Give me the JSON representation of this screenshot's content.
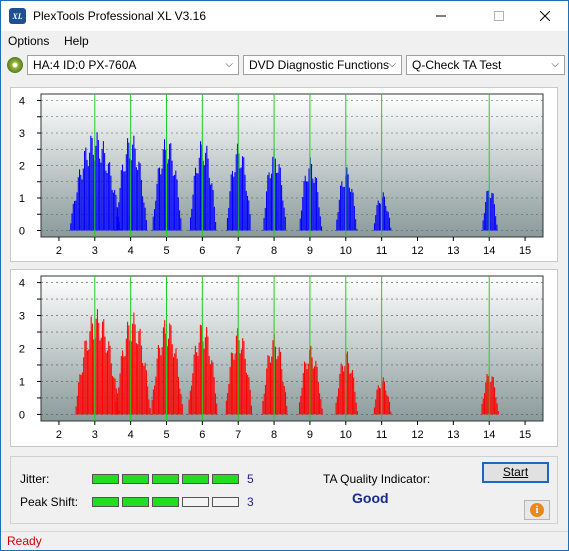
{
  "window": {
    "title": "PlexTools Professional XL V3.16",
    "icon_text": "XL"
  },
  "menu": {
    "items": [
      {
        "label": "Options"
      },
      {
        "label": "Help"
      }
    ]
  },
  "toolbar": {
    "drive": "HA:4 ID:0  PX-760A",
    "function": "DVD Diagnostic Functions",
    "test": "Q-Check TA Test"
  },
  "charts": {
    "x_ticks": [
      "2",
      "3",
      "4",
      "5",
      "6",
      "7",
      "8",
      "9",
      "10",
      "11",
      "12",
      "13",
      "14",
      "15"
    ],
    "y_ticks": [
      "0",
      "0.5",
      "1",
      "1.5",
      "2",
      "2.5",
      "3",
      "3.5",
      "4"
    ]
  },
  "chart_data": [
    {
      "type": "bar",
      "name_hint": "upper",
      "color": "#0000ff",
      "xlim": [
        1.5,
        15.5
      ],
      "ylim": [
        -0.2,
        4.2
      ],
      "marker_lines": [
        3,
        4,
        5,
        6,
        7,
        8,
        9,
        10,
        11,
        14
      ],
      "marker_color": "#22cc22",
      "peaks": [
        {
          "center": 3.0,
          "height": 3.05,
          "half_width": 0.72
        },
        {
          "center": 4.0,
          "height": 3.0,
          "half_width": 0.45
        },
        {
          "center": 5.0,
          "height": 2.9,
          "half_width": 0.42
        },
        {
          "center": 6.0,
          "height": 2.85,
          "half_width": 0.38
        },
        {
          "center": 7.0,
          "height": 2.7,
          "half_width": 0.35
        },
        {
          "center": 8.0,
          "height": 2.55,
          "half_width": 0.33
        },
        {
          "center": 9.0,
          "height": 2.25,
          "half_width": 0.32
        },
        {
          "center": 10.0,
          "height": 1.95,
          "half_width": 0.3
        },
        {
          "center": 11.0,
          "height": 1.2,
          "half_width": 0.25
        },
        {
          "center": 14.0,
          "height": 1.4,
          "half_width": 0.22
        }
      ]
    },
    {
      "type": "bar",
      "name_hint": "lower",
      "color": "#ff0000",
      "xlim": [
        1.5,
        15.5
      ],
      "ylim": [
        -0.2,
        4.2
      ],
      "marker_lines": [
        3,
        4,
        5,
        6,
        7,
        8,
        9,
        10,
        11,
        14
      ],
      "marker_color": "#22cc22",
      "peaks": [
        {
          "center": 3.05,
          "height": 3.2,
          "half_width": 0.62
        },
        {
          "center": 4.05,
          "height": 3.1,
          "half_width": 0.5
        },
        {
          "center": 5.0,
          "height": 2.95,
          "half_width": 0.45
        },
        {
          "center": 6.0,
          "height": 2.85,
          "half_width": 0.42
        },
        {
          "center": 7.0,
          "height": 2.65,
          "half_width": 0.38
        },
        {
          "center": 8.0,
          "height": 2.45,
          "half_width": 0.36
        },
        {
          "center": 9.0,
          "height": 2.1,
          "half_width": 0.34
        },
        {
          "center": 10.0,
          "height": 1.95,
          "half_width": 0.32
        },
        {
          "center": 11.0,
          "height": 1.15,
          "half_width": 0.25
        },
        {
          "center": 14.0,
          "height": 1.35,
          "half_width": 0.25
        }
      ]
    }
  ],
  "quality": {
    "jitter_label": "Jitter:",
    "jitter_value": "5",
    "jitter_level": 5,
    "peak_shift_label": "Peak Shift:",
    "peak_shift_value": "3",
    "peak_shift_level": 3,
    "ta_label": "TA Quality Indicator:",
    "ta_value": "Good",
    "start_label": "Start"
  },
  "status": {
    "text": "Ready"
  }
}
